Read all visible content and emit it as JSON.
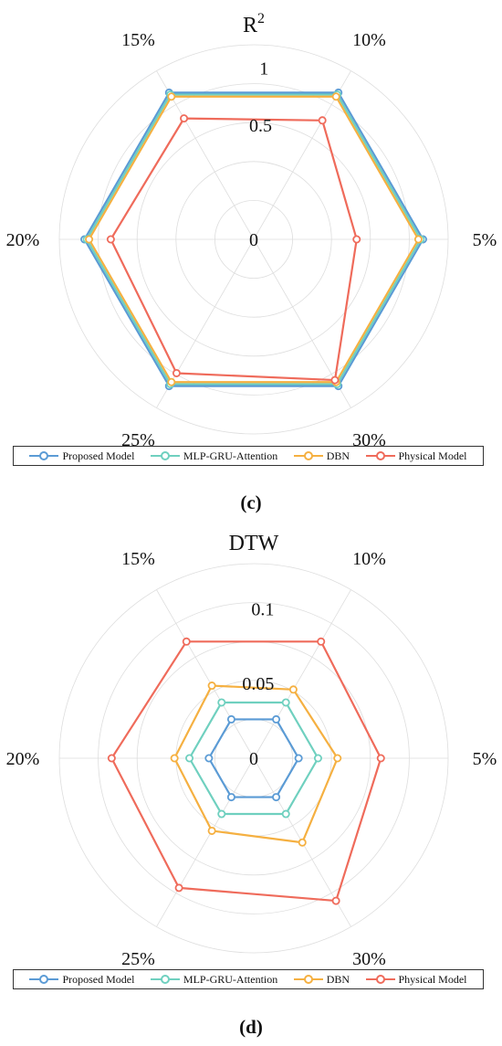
{
  "captions": [
    "(c)",
    "(d)"
  ],
  "legend": [
    {
      "name": "Proposed Model",
      "color": "#5b9bd5"
    },
    {
      "name": "MLP-GRU-Attention",
      "color": "#6fd0bf"
    },
    {
      "name": "DBN",
      "color": "#f5b041"
    },
    {
      "name": "Physical Model",
      "color": "#ef6b5b"
    }
  ],
  "chart_data": [
    {
      "type": "radar",
      "title": "R",
      "title_superscript": "2",
      "categories": [
        "5%",
        "10%",
        "15%",
        "20%",
        "25%",
        "30%"
      ],
      "radial_ticks": [
        "0",
        "0.5",
        "1"
      ],
      "rlim": [
        -0.5,
        1.2
      ],
      "grid": true,
      "series": [
        {
          "name": "Proposed Model",
          "values": [
            0.98,
            0.98,
            0.98,
            0.98,
            0.98,
            0.98
          ]
        },
        {
          "name": "MLP-GRU-Attention",
          "values": [
            0.96,
            0.96,
            0.96,
            0.96,
            0.96,
            0.96
          ]
        },
        {
          "name": "DBN",
          "values": [
            0.94,
            0.94,
            0.94,
            0.94,
            0.94,
            0.94
          ]
        },
        {
          "name": "Physical Model",
          "values": [
            0.4,
            0.7,
            0.72,
            0.75,
            0.85,
            0.92
          ]
        }
      ]
    },
    {
      "type": "radar",
      "title": "DTW",
      "categories": [
        "5%",
        "10%",
        "15%",
        "20%",
        "25%",
        "30%"
      ],
      "radial_ticks": [
        "0",
        "0.05",
        "0.1"
      ],
      "rlim": [
        0,
        0.13
      ],
      "grid": true,
      "series": [
        {
          "name": "Proposed Model",
          "values": [
            0.03,
            0.03,
            0.03,
            0.03,
            0.03,
            0.03
          ]
        },
        {
          "name": "MLP-GRU-Attention",
          "values": [
            0.043,
            0.043,
            0.043,
            0.043,
            0.043,
            0.043
          ]
        },
        {
          "name": "DBN",
          "values": [
            0.056,
            0.053,
            0.056,
            0.053,
            0.056,
            0.065
          ]
        },
        {
          "name": "Physical Model",
          "values": [
            0.085,
            0.09,
            0.09,
            0.095,
            0.1,
            0.11
          ]
        }
      ]
    }
  ]
}
